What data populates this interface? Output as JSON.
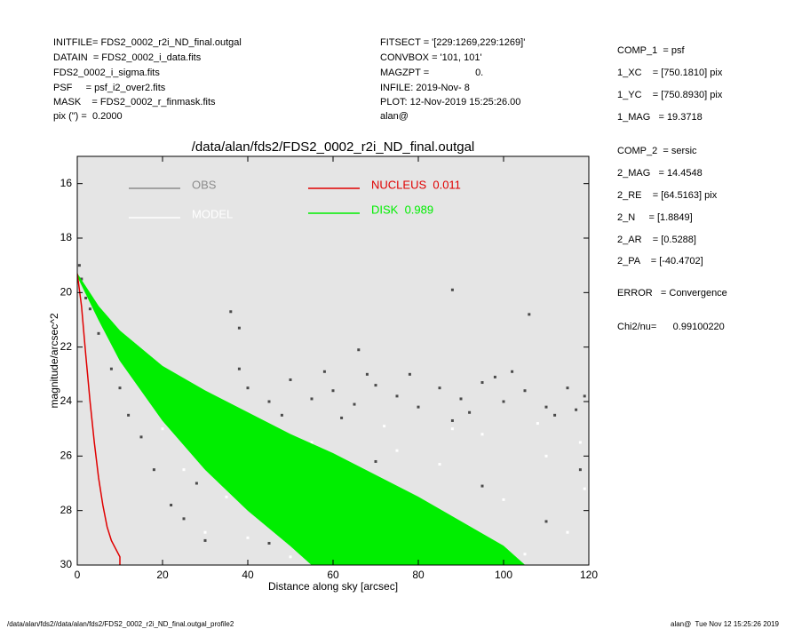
{
  "header": {
    "left": [
      "INITFILE= FDS2_0002_r2i_ND_final.outgal",
      "DATAIN  = FDS2_0002_i_data.fits",
      "FDS2_0002_i_sigma.fits",
      "PSF     = psf_i2_over2.fits",
      "MASK    = FDS2_0002_r_finmask.fits",
      "pix (\") =  0.2000"
    ],
    "middle": [
      "FITSECT = '[229:1269,229:1269]'",
      "CONVBOX = '101, 101'",
      "MAGZPT =                 0.",
      "INFILE: 2019-Nov- 8",
      "PLOT: 12-Nov-2019 15:25:26.00",
      "alan@"
    ],
    "right": [
      "COMP_1  = psf",
      "1_XC    = [750.1810] pix",
      "1_YC    = [750.8930] pix",
      "1_MAG   = 19.3718",
      "COMP_2  = sersic",
      "2_MAG   = 14.4548",
      "2_RE    = [64.5163] pix",
      "2_N     = [1.8849]",
      "2_AR    = [0.5288]",
      "2_PA    = [-40.4702]",
      "ERROR   = Convergence",
      "Chi2/nu=      0.99100220"
    ]
  },
  "footer": {
    "left": "/data/alan/fds2//data/alan/fds2/FDS2_0002_r2i_ND_final.outgal_profile2",
    "right": "alan@  Tue Nov 12 15:25:26 2019"
  },
  "chart_data": {
    "type": "scatter",
    "title": "/data/alan/fds2/FDS2_0002_r2i_ND_final.outgal",
    "x_label": "Distance along sky [arcsec]",
    "y_label": "magnitude/arcsec^2",
    "xlim": [
      0,
      120
    ],
    "xticks": [
      0,
      20,
      40,
      60,
      80,
      100,
      120
    ],
    "ylim": [
      30,
      15
    ],
    "yticks": [
      16,
      18,
      20,
      22,
      24,
      26,
      28,
      30
    ],
    "background": "#e5e5e5",
    "series": [
      {
        "name": "OBS",
        "type": "scatter",
        "color": "#4a4a4a",
        "legend_color": "#8c8c8c",
        "x": [
          0.5,
          1,
          2,
          3,
          5,
          8,
          10,
          12,
          15,
          18,
          22,
          25,
          30,
          16,
          20,
          25,
          30,
          35,
          40,
          45,
          50,
          55,
          60,
          65,
          70,
          75,
          80,
          85,
          90,
          95,
          100,
          105,
          110,
          115,
          119,
          38,
          58,
          78,
          98,
          62,
          88,
          112,
          40,
          70,
          95,
          55,
          110,
          45,
          80,
          118,
          88,
          106,
          36,
          38,
          66,
          33,
          28,
          22,
          48,
          68,
          92,
          102,
          117
        ],
        "values": [
          19.0,
          19.5,
          20.2,
          20.6,
          21.5,
          22.8,
          23.5,
          24.5,
          25.3,
          26.5,
          27.8,
          28.3,
          29.1,
          23.3,
          23.4,
          23.8,
          23.7,
          24.2,
          23.5,
          24.0,
          23.2,
          23.9,
          23.6,
          24.1,
          23.4,
          23.8,
          24.2,
          23.5,
          23.9,
          23.3,
          24.0,
          23.6,
          24.2,
          23.5,
          23.8,
          22.8,
          22.9,
          23.0,
          23.1,
          24.6,
          24.7,
          24.5,
          25.5,
          26.2,
          27.1,
          27.8,
          28.4,
          29.2,
          29.5,
          26.5,
          19.9,
          20.8,
          20.7,
          21.3,
          22.1,
          25.8,
          27.0,
          24.3,
          24.5,
          23.0,
          24.4,
          22.9,
          24.3
        ]
      },
      {
        "name": "MODEL",
        "type": "scatter",
        "color": "#ffffff",
        "legend_color": "#ffffff",
        "x": [
          25,
          35,
          45,
          55,
          60,
          65,
          70,
          75,
          80,
          85,
          90,
          95,
          100,
          105,
          110,
          115,
          119,
          50,
          40,
          30,
          62,
          72,
          88,
          108,
          118,
          20
        ],
        "values": [
          26.5,
          27.5,
          26.8,
          25.5,
          28.0,
          26.7,
          27.5,
          25.8,
          29.0,
          26.3,
          28.5,
          25.2,
          27.6,
          29.6,
          26.0,
          28.8,
          27.2,
          29.7,
          29.0,
          28.8,
          29.5,
          24.9,
          25.0,
          24.8,
          25.5,
          25.0
        ]
      },
      {
        "name": "NUCLEUS  0.011",
        "type": "line",
        "color": "#e00000",
        "legend_color": "#e00000",
        "x": [
          0,
          1,
          2,
          3,
          4,
          5,
          6,
          7,
          8,
          9,
          10,
          10
        ],
        "values": [
          19.3,
          20.5,
          22.3,
          24.0,
          25.5,
          26.8,
          27.8,
          28.6,
          29.1,
          29.4,
          29.7,
          30
        ]
      },
      {
        "name": "DISK  0.989",
        "type": "band",
        "color": "#00ee00",
        "legend_color": "#00ee00",
        "x": [
          0,
          5,
          10,
          20,
          30,
          40,
          50,
          55,
          60,
          80,
          100,
          105
        ],
        "values": [
          19.3,
          20.5,
          21.4,
          22.7,
          23.6,
          24.4,
          25.2,
          25.55,
          25.9,
          27.5,
          29.3,
          30
        ],
        "values_faint": [
          19.4,
          21.0,
          22.5,
          24.7,
          26.5,
          28.0,
          29.3,
          30,
          null,
          null,
          null,
          null
        ]
      }
    ]
  }
}
